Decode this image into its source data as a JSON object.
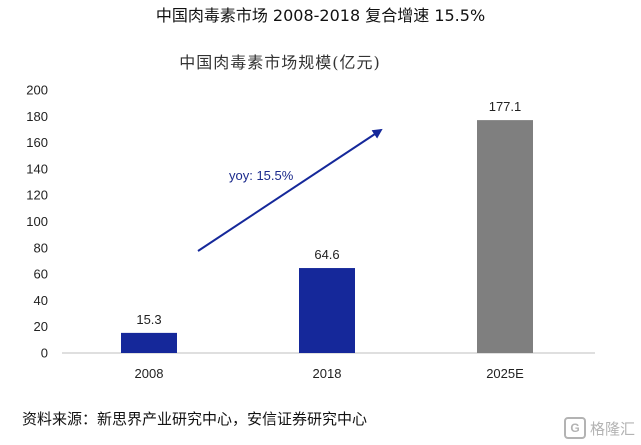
{
  "header": {
    "text": "中国肉毒素市场  2008-2018  复合增速  15.5%"
  },
  "chart_data": {
    "type": "bar",
    "title": "中国肉毒素市场规模(亿元)",
    "categories": [
      "2008",
      "2018",
      "2025E"
    ],
    "values": [
      15.3,
      64.6,
      177.1
    ],
    "value_labels": [
      "15.3",
      "64.6",
      "177.1"
    ],
    "bar_colors": [
      "#15289a",
      "#15289a",
      "#7f7f7f"
    ],
    "ylim": [
      0,
      200
    ],
    "yticks": [
      0,
      20,
      40,
      60,
      80,
      100,
      120,
      140,
      160,
      180,
      200
    ],
    "grid": false,
    "annotation": {
      "text": "yoy: 15.5%",
      "color": "#1b2a8c"
    }
  },
  "source": {
    "text": "资料来源：新思界产业研究中心，安信证券研究中心"
  },
  "watermark": {
    "badge": "G",
    "text": "格隆汇"
  }
}
